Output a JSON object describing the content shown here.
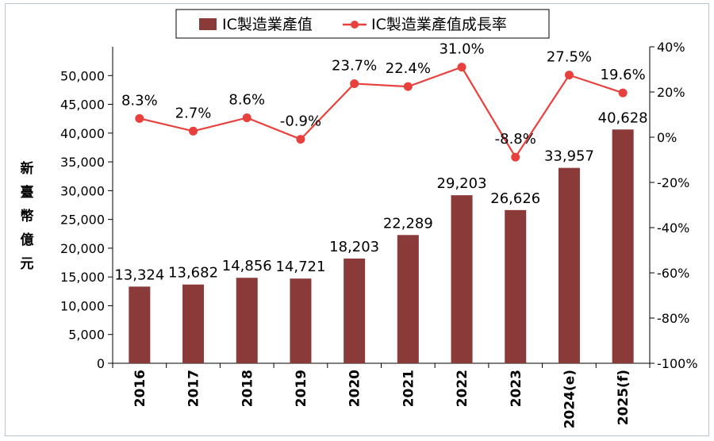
{
  "chart_data": {
    "type": "bar+line",
    "categories": [
      "2016",
      "2017",
      "2018",
      "2019",
      "2020",
      "2021",
      "2022",
      "2023",
      "2024(e)",
      "2025(f)"
    ],
    "series": [
      {
        "name": "IC製造業產值",
        "type": "bar",
        "axis": "left",
        "color": "#8b3a3a",
        "values": [
          13324,
          13682,
          14856,
          14721,
          18203,
          22289,
          29203,
          26626,
          33957,
          40628
        ],
        "labels": [
          "13,324",
          "13,682",
          "14,856",
          "14,721",
          "18,203",
          "22,289",
          "29,203",
          "26,626",
          "33,957",
          "40,628"
        ]
      },
      {
        "name": "IC製造業產值成長率",
        "type": "line",
        "axis": "right",
        "color": "#e8413d",
        "values": [
          8.3,
          2.7,
          8.6,
          -0.9,
          23.7,
          22.4,
          31.0,
          -8.8,
          27.5,
          19.6
        ],
        "labels": [
          "8.3%",
          "2.7%",
          "8.6%",
          "-0.9%",
          "23.7%",
          "22.4%",
          "31.0%",
          "-8.8%",
          "27.5%",
          "19.6%"
        ]
      }
    ],
    "ylabel": "新臺幣億元",
    "y_left": {
      "range": [
        0,
        55000
      ],
      "ticks": [
        0,
        5000,
        10000,
        15000,
        20000,
        25000,
        30000,
        35000,
        40000,
        45000,
        50000
      ],
      "tick_labels": [
        "0",
        "5,000",
        "10,000",
        "15,000",
        "20,000",
        "25,000",
        "30,000",
        "35,000",
        "40,000",
        "45,000",
        "50,000"
      ]
    },
    "y_right": {
      "range": [
        -100,
        40
      ],
      "ticks": [
        -100,
        -80,
        -60,
        -40,
        -20,
        0,
        20,
        40
      ],
      "tick_labels": [
        "-100%",
        "-80%",
        "-60%",
        "-40%",
        "-20%",
        "0%",
        "20%",
        "40%"
      ]
    },
    "grid": false,
    "legend_position": "top"
  }
}
